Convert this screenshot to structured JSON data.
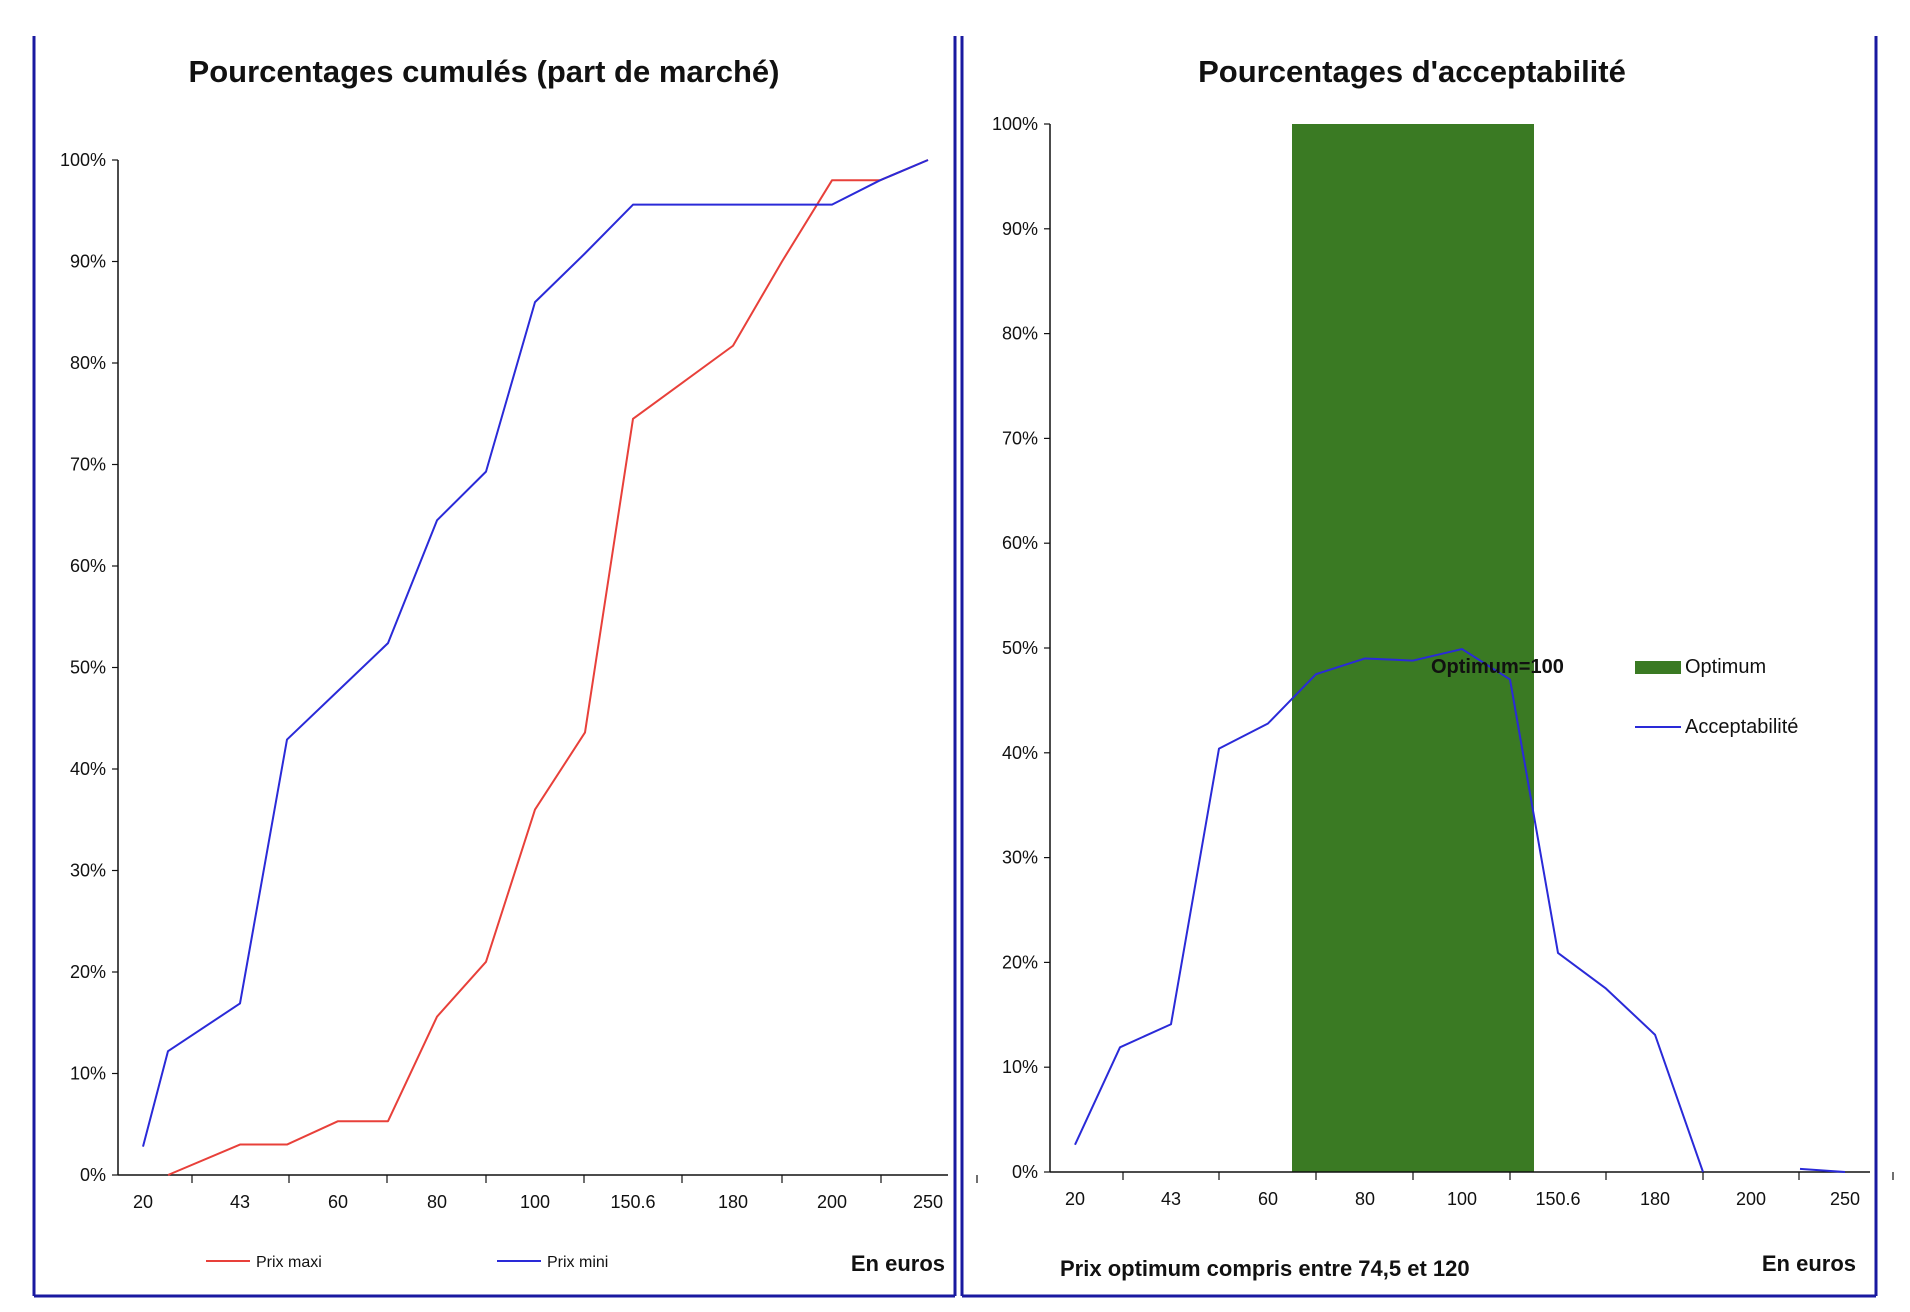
{
  "colors": {
    "red": "#e8403a",
    "blue": "#2a2ad8",
    "green": "#3a7a23",
    "frame": "#1a1aa0",
    "text": "#111111"
  },
  "chart_data": [
    {
      "type": "line",
      "title": "Pourcentages cumulés (part de marché)",
      "xlabel": "En euros",
      "ylabel": "",
      "ylim": [
        0,
        100
      ],
      "y_ticks": [
        "0%",
        "10%",
        "20%",
        "30%",
        "40%",
        "50%",
        "60%",
        "70%",
        "80%",
        "90%",
        "100%"
      ],
      "x_tick_labels": [
        "20",
        "43",
        "60",
        "80",
        "100",
        "150.6",
        "180",
        "200",
        "250"
      ],
      "x": [
        20,
        30,
        43,
        50,
        60,
        70,
        80,
        90,
        100,
        110,
        150.6,
        165,
        180,
        190,
        200,
        220,
        250
      ],
      "series": [
        {
          "name": "Prix maxi",
          "color": "#e8403a",
          "values": [
            null,
            0,
            3,
            3,
            5.3,
            5.3,
            15.6,
            21,
            36,
            43.6,
            74.5,
            78.1,
            81.7,
            90,
            98,
            98,
            100
          ]
        },
        {
          "name": "Prix mini",
          "color": "#2a2ad8",
          "values": [
            2.8,
            12.2,
            16.9,
            42.9,
            47.7,
            52.4,
            64.5,
            69.3,
            86,
            90.8,
            95.6,
            95.6,
            95.6,
            95.6,
            95.6,
            98,
            100
          ]
        }
      ],
      "grid": false,
      "legend": "bottom"
    },
    {
      "type": "line",
      "title": "Pourcentages d'acceptabilité",
      "xlabel": "En euros",
      "footnote": "Prix optimum  compris entre 74,5 et 120",
      "ylabel": "",
      "ylim": [
        0,
        100
      ],
      "y_ticks": [
        "0%",
        "10%",
        "20%",
        "30%",
        "40%",
        "50%",
        "60%",
        "70%",
        "80%",
        "90%",
        "100%"
      ],
      "x_tick_labels": [
        "20",
        "43",
        "60",
        "80",
        "100",
        "150.6",
        "180",
        "200",
        "250"
      ],
      "x": [
        20,
        30,
        43,
        50,
        60,
        70,
        80,
        90,
        100,
        110,
        150.6,
        165,
        180,
        190,
        200,
        220,
        250
      ],
      "optimum_band": {
        "name": "Optimum",
        "from": 74.5,
        "to": 120,
        "value": 100,
        "color": "#3a7a23"
      },
      "annotation": "Optimum=100",
      "series": [
        {
          "name": "Acceptabilité",
          "color": "#2a2ad8",
          "values": [
            2.6,
            11.9,
            14.1,
            40.4,
            42.8,
            47.5,
            49,
            48.8,
            49.9,
            47,
            20.9,
            17.5,
            13.1,
            0,
            null,
            0.3,
            0
          ]
        }
      ],
      "grid": false,
      "legend": "right"
    }
  ]
}
